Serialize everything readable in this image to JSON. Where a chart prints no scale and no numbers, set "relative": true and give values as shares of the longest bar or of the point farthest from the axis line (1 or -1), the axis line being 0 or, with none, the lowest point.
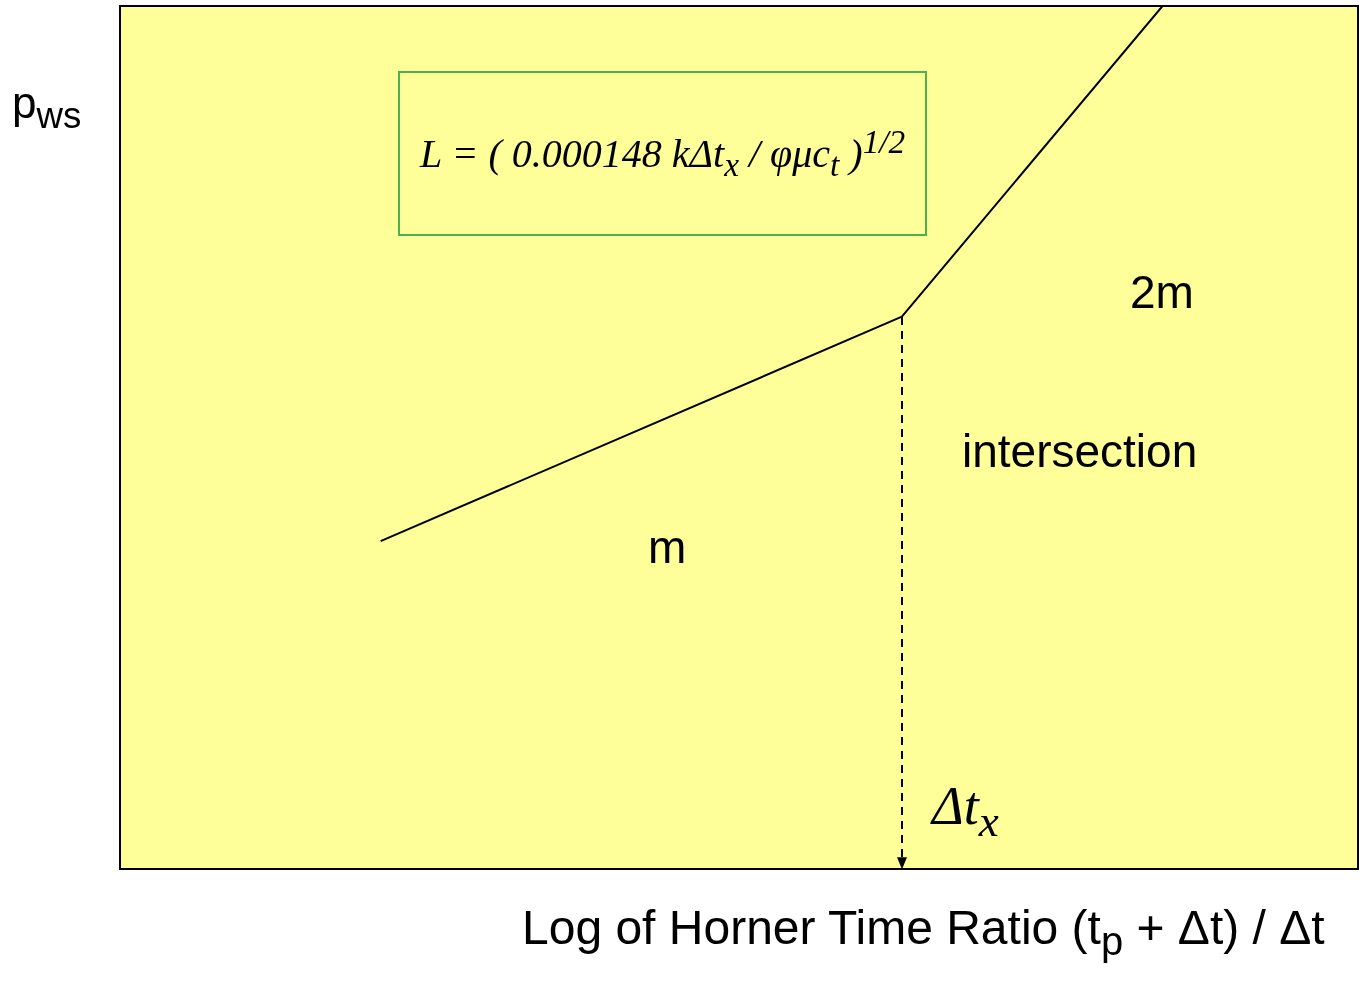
{
  "chart_data": {
    "type": "line",
    "xlabel": "Log of Horner Time Ratio (t$_{p}$ + Δt) / Δt",
    "ylabel": "p$_{ws}$",
    "categories": [
      null,
      null,
      null,
      null,
      null,
      null,
      null,
      null,
      null,
      null,
      null,
      null,
      null,
      null,
      null,
      null,
      null,
      null,
      null,
      null
    ],
    "series": [
      {
        "color": "#000000",
        "values": [
          null,
          null,
          null,
          null,
          0.38,
          null,
          null,
          null,
          null,
          null,
          null,
          null,
          0.64,
          null,
          null,
          null,
          1,
          null,
          null,
          null
        ]
      }
    ],
    "relative": true,
    "legend": false,
    "marker": "none",
    "line_style": "solid",
    "annotations": [
      "L = ( 0.000148 kΔt$_{x}$ / φμc$_{t}$ )$^{1/2}$",
      "m",
      "2m",
      "intersection",
      "Δt$_{x}$"
    ]
  }
}
